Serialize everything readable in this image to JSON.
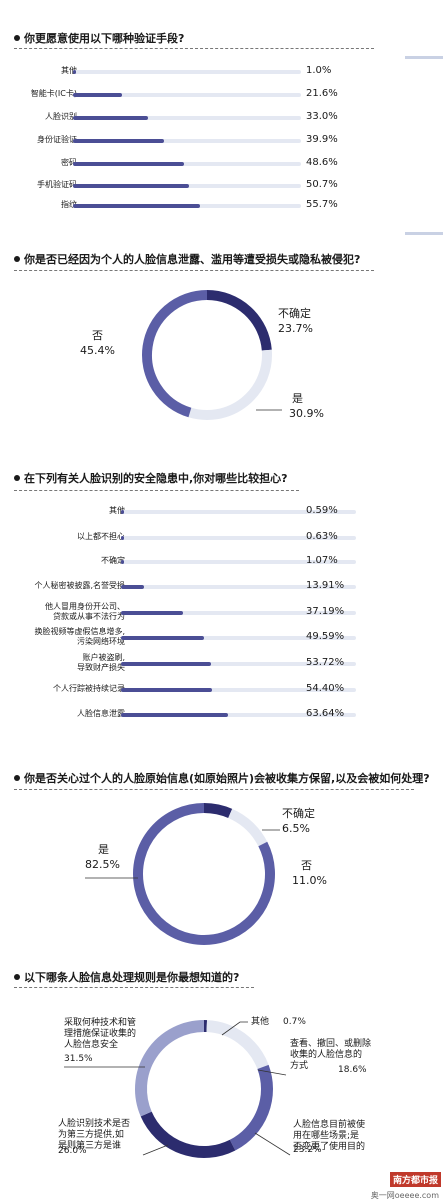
{
  "q1": {
    "title": "你更愿意使用以下哪种验证手段?",
    "labels": [
      "其他",
      "智能卡(IC卡)",
      "人脸识别",
      "身份证验证",
      "密码",
      "手机验证码",
      "指纹"
    ],
    "values": [
      "1.0%",
      "21.6%",
      "33.0%",
      "39.9%",
      "48.6%",
      "50.7%",
      "55.7%"
    ]
  },
  "q2": {
    "title": "你是否已经因为个人的人脸信息泄露、滥用等遭受损失或隐私被侵犯?",
    "labels": [
      "不确定",
      "是",
      "否"
    ],
    "values": [
      "23.7%",
      "30.9%",
      "45.4%"
    ]
  },
  "q3": {
    "title": "在下列有关人脸识别的安全隐患中,你对哪些比较担心?",
    "labels": [
      "其他",
      "以上都不担心",
      "不确定",
      "个人秘密被披露,名誉受损",
      "他人冒用身份开公司、\n贷款或从事不法行为",
      "换脸视频等虚假信息增多,\n污染网络环境",
      "账户被盗刷,\n导致财产损失",
      "个人行踪被持续记录",
      "人脸信息泄露"
    ],
    "values": [
      "0.59%",
      "0.63%",
      "1.07%",
      "13.91%",
      "37.19%",
      "49.59%",
      "53.72%",
      "54.40%",
      "63.64%"
    ]
  },
  "q4": {
    "title": "你是否关心过个人的人脸原始信息(如原始照片)会被收集方保留,以及会被如何处理?",
    "labels": [
      "不确定",
      "否",
      "是"
    ],
    "values": [
      "6.5%",
      "11.0%",
      "82.5%"
    ]
  },
  "q5": {
    "title": "以下哪条人脸信息处理规则是你最想知道的?",
    "labels": [
      "其他",
      "查看、撤回、或删除\n收集的人脸信息的\n方式",
      "人脸信息目前被使\n用在哪些场景;是\n否变更了使用目的",
      "人脸识别技术是否\n为第三方提供,如\n是则第三方是谁",
      "采取何种技术和管\n理措施保证收集的\n人脸信息安全"
    ],
    "values": [
      "0.7%",
      "18.6%",
      "23.2%",
      "26.0%",
      "31.5%"
    ]
  },
  "colors": {
    "dark": "#2c2c6e",
    "mid": "#5b5ea6",
    "light": "#9aa0cc",
    "pale": "#e4e8f2",
    "bar": "#4b4e95"
  },
  "footer": {
    "logo": "南方都市报",
    "site": "奥一网oeeee.com"
  },
  "chart_data": [
    {
      "type": "bar",
      "title": "你更愿意使用以下哪种验证手段?",
      "categories": [
        "其他",
        "智能卡(IC卡)",
        "人脸识别",
        "身份证验证",
        "密码",
        "手机验证码",
        "指纹"
      ],
      "values": [
        1.0,
        21.6,
        33.0,
        39.9,
        48.6,
        50.7,
        55.7
      ],
      "unit": "%"
    },
    {
      "type": "pie",
      "title": "你是否已经因为个人的人脸信息泄露、滥用等遭受损失或隐私被侵犯?",
      "categories": [
        "不确定",
        "是",
        "否"
      ],
      "values": [
        23.7,
        30.9,
        45.4
      ],
      "unit": "%"
    },
    {
      "type": "bar",
      "title": "在下列有关人脸识别的安全隐患中,你对哪些比较担心?",
      "categories": [
        "其他",
        "以上都不担心",
        "不确定",
        "个人秘密被披露,名誉受损",
        "他人冒用身份开公司、贷款或从事不法行为",
        "换脸视频等虚假信息增多,污染网络环境",
        "账户被盗刷,导致财产损失",
        "个人行踪被持续记录",
        "人脸信息泄露"
      ],
      "values": [
        0.59,
        0.63,
        1.07,
        13.91,
        37.19,
        49.59,
        53.72,
        54.4,
        63.64
      ],
      "unit": "%"
    },
    {
      "type": "pie",
      "title": "你是否关心过个人的人脸原始信息(如原始照片)会被收集方保留,以及会被如何处理?",
      "categories": [
        "不确定",
        "否",
        "是"
      ],
      "values": [
        6.5,
        11.0,
        82.5
      ],
      "unit": "%"
    },
    {
      "type": "pie",
      "title": "以下哪条人脸信息处理规则是你最想知道的?",
      "categories": [
        "其他",
        "查看、撤回、或删除收集的人脸信息的方式",
        "人脸信息目前被使用在哪些场景;是否变更了使用目的",
        "人脸识别技术是否为第三方提供,如是则第三方是谁",
        "采取何种技术和管理措施保证收集的人脸信息安全"
      ],
      "values": [
        0.7,
        18.6,
        23.2,
        26.0,
        31.5
      ],
      "unit": "%"
    }
  ]
}
